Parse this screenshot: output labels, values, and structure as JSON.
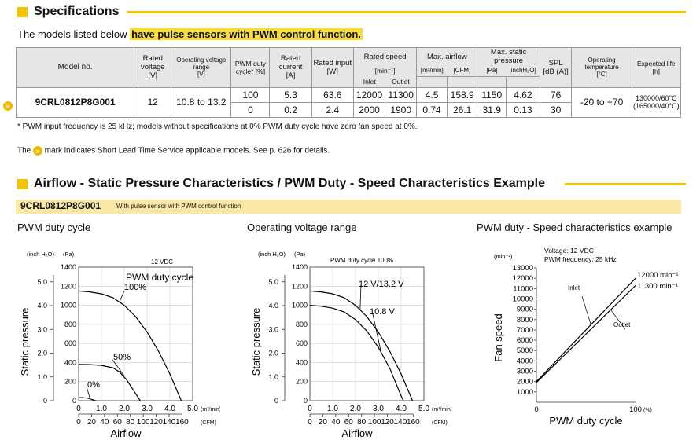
{
  "spec_section": {
    "title": "Specifications"
  },
  "intro": {
    "prefix": "The models listed below ",
    "highlight": "have pulse sensors with PWM control function."
  },
  "table": {
    "h_model": "Model no.",
    "h_rated_voltage": [
      "Rated voltage",
      "[V]"
    ],
    "h_op_voltage": [
      "Operating voltage range",
      "[V]"
    ],
    "h_pwm_duty": [
      "PWM duty",
      "cycle* [%]"
    ],
    "h_rated_current": [
      "Rated current",
      "[A]"
    ],
    "h_rated_input": [
      "Rated input",
      "[W]"
    ],
    "h_rated_speed": [
      "Rated speed",
      "[min⁻¹]",
      "Inlet",
      "Outlet"
    ],
    "h_max_airflow": [
      "Max. airflow",
      "[m³/min]",
      "[CFM]"
    ],
    "h_max_static": [
      "Max. static pressure",
      "[Pa]",
      "[inchH₂O]"
    ],
    "h_spl": [
      "SPL",
      "[dB (A)]"
    ],
    "h_op_temp": [
      "Operating temperature",
      "[°C]"
    ],
    "h_life": [
      "Expected life",
      "[h]"
    ],
    "row": {
      "model": "9CRL0812P8G001",
      "rated_voltage": "12",
      "op_voltage": "10.8 to 13.2",
      "op_temp": "-20 to +70",
      "life_1": "130000/60°C",
      "life_2": "(165000/40°C)",
      "lines": [
        {
          "pwm": "100",
          "current": "5.3",
          "input": "63.6",
          "inlet": "12000",
          "outlet": "11300",
          "m3": "4.5",
          "cfm": "158.9",
          "pa": "1150",
          "inch": "4.62",
          "spl": "76"
        },
        {
          "pwm": "0",
          "current": "0.2",
          "input": "2.4",
          "inlet": "2000",
          "outlet": "1900",
          "m3": "0.74",
          "cfm": "26.1",
          "pa": "31.9",
          "inch": "0.13",
          "spl": "30"
        }
      ]
    }
  },
  "notes": {
    "pwm_note": "* PWM input frequency is 25 kHz; models without specifications at 0% PWM duty cycle have zero fan speed at 0%.",
    "lead_prefix": "The ",
    "lead_suffix": " mark indicates Short Lead Time Service applicable models. See p. 626 for details."
  },
  "airflow_section": {
    "title": "Airflow - Static Pressure Characteristics / PWM Duty - Speed Characteristics Example"
  },
  "model_bar": {
    "model": "9CRL0812P8G001",
    "sub": "With pulse sensor with PWM control function"
  },
  "charts": [
    {
      "heading": "PWM duty cycle",
      "chart_data": {
        "type": "line",
        "title": "",
        "note": "12 VDC",
        "legend_title": "PWM duty cycle",
        "xlabel": "Airflow",
        "ylabel": "Static pressure",
        "y_unit_left": "(inch H₂O)",
        "y_unit_right": "(Pa)",
        "x_unit_top": "(m³/min)",
        "x_unit_bottom": "(CFM)",
        "xlim": [
          0,
          5.0
        ],
        "ylim_pa": [
          0,
          1400
        ],
        "x_ticks_m3": [
          "0",
          "1.0",
          "2.0",
          "3.0",
          "4.0",
          "5.0"
        ],
        "x_ticks_cfm": [
          "0",
          "20",
          "40",
          "60",
          "80",
          "100",
          "120",
          "140",
          "160"
        ],
        "y_ticks_pa": [
          "200",
          "400",
          "600",
          "800",
          "1000",
          "1200",
          "1400"
        ],
        "y_ticks_inch": [
          "0",
          "1.0",
          "2.0",
          "3.0",
          "4.0",
          "5.0"
        ],
        "series": [
          {
            "name": "100%",
            "points": [
              [
                0,
                1150
              ],
              [
                0.5,
                1140
              ],
              [
                1.0,
                1120
              ],
              [
                1.5,
                1080
              ],
              [
                2.0,
                1000
              ],
              [
                2.5,
                880
              ],
              [
                3.0,
                720
              ],
              [
                3.5,
                520
              ],
              [
                4.0,
                280
              ],
              [
                4.5,
                0
              ]
            ]
          },
          {
            "name": "50%",
            "points": [
              [
                0,
                380
              ],
              [
                0.5,
                378
              ],
              [
                1.0,
                370
              ],
              [
                1.5,
                345
              ],
              [
                1.8,
                300
              ],
              [
                2.1,
                220
              ],
              [
                2.4,
                110
              ],
              [
                2.7,
                0
              ]
            ]
          },
          {
            "name": "0%",
            "points": [
              [
                0,
                31.9
              ],
              [
                0.2,
                31
              ],
              [
                0.4,
                26
              ],
              [
                0.55,
                15
              ],
              [
                0.74,
                0
              ]
            ]
          }
        ]
      }
    },
    {
      "heading": "Operating voltage range",
      "chart_data": {
        "type": "line",
        "title": "",
        "note": "PWM duty cycle 100%",
        "xlabel": "Airflow",
        "ylabel": "Static pressure",
        "y_unit_left": "(inch H₂O)",
        "y_unit_right": "(Pa)",
        "x_unit_top": "(m³/min)",
        "x_unit_bottom": "(CFM)",
        "xlim": [
          0,
          5.0
        ],
        "ylim_pa": [
          0,
          1400
        ],
        "x_ticks_m3": [
          "0",
          "1.0",
          "2.0",
          "3.0",
          "4.0",
          "5.0"
        ],
        "x_ticks_cfm": [
          "0",
          "20",
          "40",
          "60",
          "80",
          "100",
          "120",
          "140",
          "160"
        ],
        "y_ticks_pa": [
          "200",
          "400",
          "600",
          "800",
          "1000",
          "1200",
          "1400"
        ],
        "y_ticks_inch": [
          "0",
          "1.0",
          "2.0",
          "3.0",
          "4.0",
          "5.0"
        ],
        "series": [
          {
            "name": "12 V/13.2 V",
            "points": [
              [
                0,
                1150
              ],
              [
                0.5,
                1140
              ],
              [
                1.0,
                1120
              ],
              [
                1.5,
                1080
              ],
              [
                2.0,
                1000
              ],
              [
                2.5,
                880
              ],
              [
                3.0,
                720
              ],
              [
                3.5,
                520
              ],
              [
                4.0,
                280
              ],
              [
                4.5,
                0
              ]
            ]
          },
          {
            "name": "10.8 V",
            "points": [
              [
                0,
                1000
              ],
              [
                0.5,
                990
              ],
              [
                1.0,
                970
              ],
              [
                1.5,
                930
              ],
              [
                2.0,
                850
              ],
              [
                2.5,
                730
              ],
              [
                3.0,
                560
              ],
              [
                3.5,
                340
              ],
              [
                4.0,
                50
              ],
              [
                4.1,
                0
              ]
            ]
          }
        ]
      }
    },
    {
      "heading": "PWM duty - Speed characteristics example",
      "chart_data": {
        "type": "line",
        "title": "",
        "note_1": "Voltage: 12 VDC",
        "note_2": "PWM frequency: 25 kHz",
        "xlabel": "PWM duty cycle",
        "ylabel": "Fan speed",
        "y_unit": "(min⁻¹)",
        "x_unit": "(%)",
        "xlim": [
          0,
          100
        ],
        "ylim": [
          0,
          13000
        ],
        "x_ticks": [
          "0",
          "100"
        ],
        "y_ticks": [
          "1000",
          "2000",
          "3000",
          "4000",
          "5000",
          "6000",
          "7000",
          "8000",
          "9000",
          "10000",
          "11000",
          "12000",
          "13000"
        ],
        "series": [
          {
            "name": "Inlet",
            "end_label": "12000 min⁻¹",
            "points": [
              [
                0,
                2000
              ],
              [
                100,
                12000
              ]
            ]
          },
          {
            "name": "Outlet",
            "end_label": "11300 min⁻¹",
            "points": [
              [
                0,
                1900
              ],
              [
                100,
                11300
              ]
            ]
          }
        ]
      }
    }
  ]
}
